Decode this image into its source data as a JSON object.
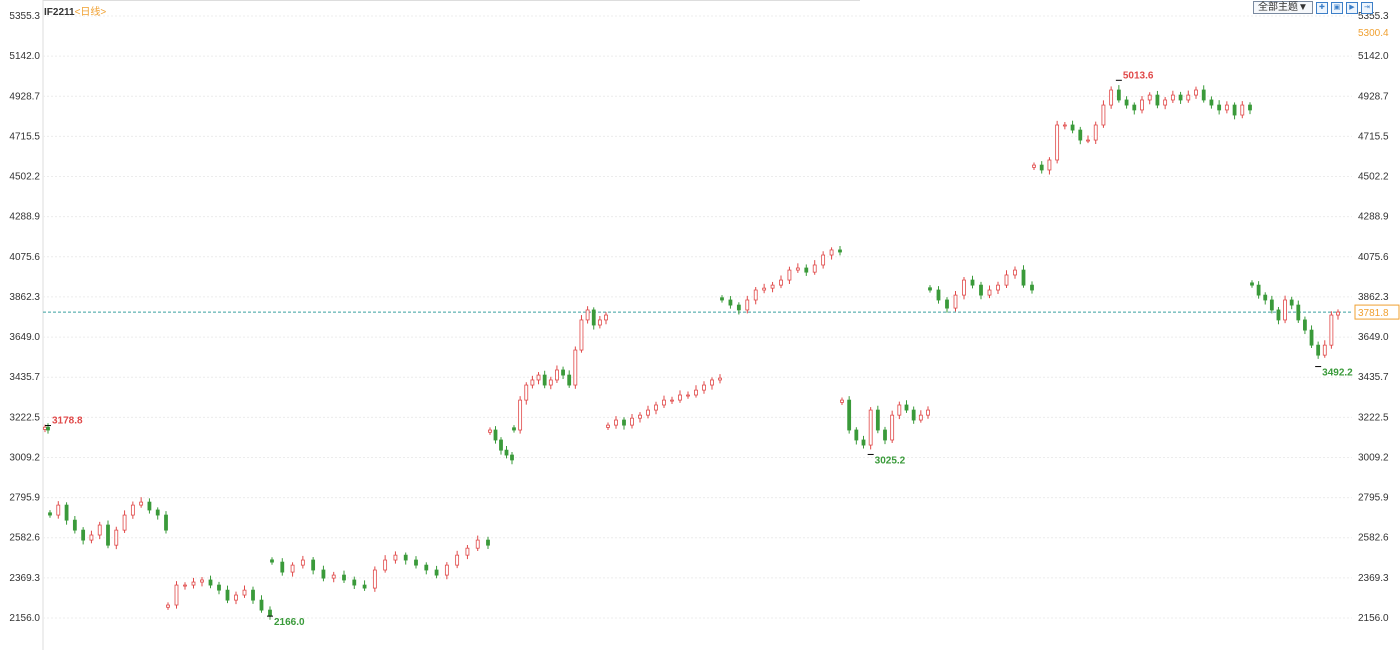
{
  "header": {
    "symbol": "IF2211",
    "period": "<日线>",
    "theme_button": "全部主题▼",
    "icons": [
      "crosshair-icon",
      "zoom-fit-icon",
      "play-icon",
      "end-icon"
    ]
  },
  "colors": {
    "up": "#e04848",
    "down": "#3a9a3a",
    "grid": "#ececec",
    "current_line": "#3aa0a0",
    "highlight": "#f0a030"
  },
  "chart_data": {
    "type": "candlestick",
    "y_ticks": [
      "5355.3",
      "5142.0",
      "4928.7",
      "4715.5",
      "4502.2",
      "4288.9",
      "4075.6",
      "3862.3",
      "3649.0",
      "3435.7",
      "3222.5",
      "3009.2",
      "2795.9",
      "2582.6",
      "2369.3",
      "2156.0"
    ],
    "ylim": [
      2156.0,
      5355.3
    ],
    "right_top_value": "5300.4",
    "current_price": "3781.8",
    "annotations": [
      {
        "text": "3178.8",
        "price": 3178.8,
        "kind": "high",
        "segment": 0
      },
      {
        "text": "2166.0",
        "price": 2166.0,
        "kind": "low",
        "segment": 2
      },
      {
        "text": "3025.2",
        "price": 3025.2,
        "kind": "low",
        "segment": 8
      },
      {
        "text": "5013.6",
        "price": 5013.6,
        "kind": "high",
        "segment": 10
      },
      {
        "text": "3492.2",
        "price": 3492.2,
        "kind": "low",
        "segment": 11
      }
    ],
    "segments": [
      [
        3170,
        3155
      ],
      [
        2703,
        2756,
        2676,
        2623,
        2570,
        2597,
        2650,
        2543,
        2623,
        2703,
        2756,
        2772,
        2730,
        2703,
        2623
      ],
      [
        2225,
        2331,
        2331,
        2347,
        2358,
        2331,
        2304,
        2251,
        2278,
        2304,
        2251,
        2198,
        2166
      ],
      [
        2453,
        2400,
        2437,
        2464,
        2411,
        2368,
        2384,
        2358,
        2331,
        2315,
        2411,
        2464,
        2490,
        2464,
        2437,
        2411,
        2384,
        2437,
        2490,
        2527,
        2570,
        2543
      ],
      [
        3155,
        3102,
        3048,
        3022,
        2996
      ],
      [
        3155,
        3314,
        3394,
        3421,
        3447,
        3394,
        3421,
        3474,
        3447,
        3394,
        3580,
        3740,
        3793,
        3713,
        3740,
        3766
      ],
      [
        3181,
        3208,
        3181,
        3218,
        3234,
        3261,
        3288,
        3314,
        3314,
        3341,
        3341,
        3367,
        3394,
        3421,
        3431
      ],
      [
        3846,
        3819,
        3793,
        3846,
        3899,
        3909,
        3925,
        3952,
        4005,
        4016,
        3994,
        4032,
        4085,
        4112,
        4101
      ],
      [
        3314,
        3155,
        3102,
        3075,
        3261,
        3155,
        3102,
        3234,
        3288,
        3261,
        3208,
        3234,
        3261
      ],
      [
        3899,
        3846,
        3803,
        3872,
        3952,
        3925,
        3872,
        3899,
        3925,
        3979,
        4005,
        3925,
        3899
      ],
      [
        4563,
        4537,
        4590,
        4776,
        4776,
        4749,
        4696,
        4696,
        4776,
        4882,
        4962,
        4909,
        4882,
        4856,
        4909,
        4935,
        4882,
        4909,
        4935,
        4909,
        4935,
        4962,
        4909,
        4882,
        4856,
        4882,
        4829,
        4882,
        4856
      ],
      [
        3925,
        3872,
        3846,
        3793,
        3740,
        3846,
        3819,
        3740,
        3686,
        3606,
        3553,
        3606,
        3766,
        3782
      ]
    ]
  }
}
